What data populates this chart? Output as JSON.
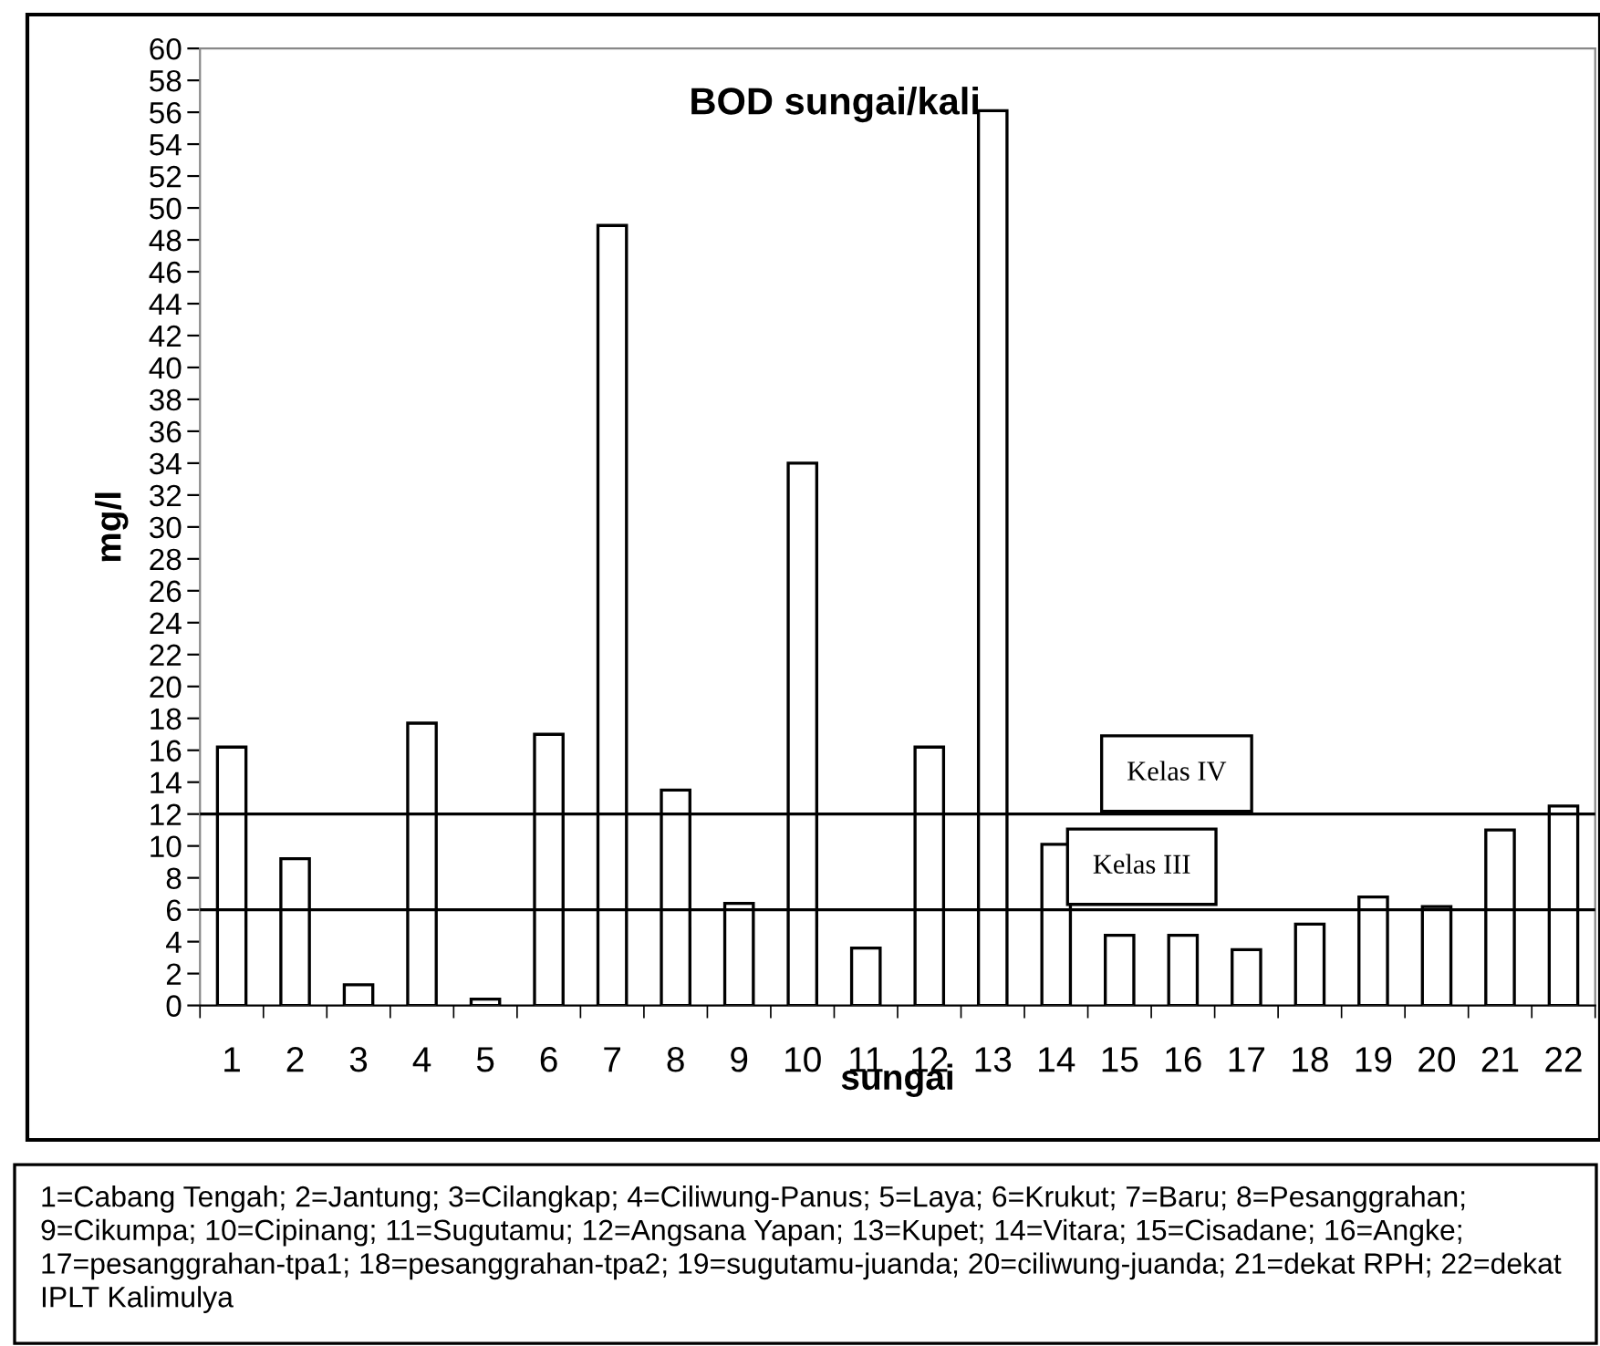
{
  "chart_data": {
    "type": "bar",
    "title": "BOD sungai/kali",
    "xlabel": "sungai",
    "ylabel": "mg/l",
    "categories": [
      "1",
      "2",
      "3",
      "4",
      "5",
      "6",
      "7",
      "8",
      "9",
      "10",
      "11",
      "12",
      "13",
      "14",
      "15",
      "16",
      "17",
      "18",
      "19",
      "20",
      "21",
      "22"
    ],
    "values": [
      16.2,
      9.2,
      1.3,
      17.7,
      0.4,
      17.0,
      48.9,
      13.5,
      6.4,
      34.0,
      3.6,
      16.2,
      56.1,
      10.1,
      4.4,
      4.4,
      3.5,
      5.1,
      6.8,
      6.2,
      11.0,
      12.5
    ],
    "color": "#ffffff",
    "ylim": [
      0,
      60
    ],
    "yticks": [
      0,
      2,
      4,
      6,
      8,
      10,
      12,
      14,
      16,
      18,
      20,
      22,
      24,
      26,
      28,
      30,
      32,
      34,
      36,
      38,
      40,
      42,
      44,
      46,
      48,
      50,
      52,
      54,
      56,
      58,
      60
    ],
    "ref_lines": [
      {
        "axis": "y",
        "value": 12,
        "label": "Kelas IV",
        "color": "#000000"
      },
      {
        "axis": "y",
        "value": 6,
        "label": "Kelas III",
        "color": "#000000"
      }
    ],
    "annotations": [
      "1=Cabang Tengah; 2=Jantung; 3=Cilangkap; 4=Ciliwung-Panus; 5=Laya; 6=Krukut; 7=Baru; 8=Pesanggrahan; 9=Cikumpa; 10=Cipinang; 11=Sugutamu; 12=Angsana Yapan; 13=Kupet; 14=Vitara; 15=Cisadane; 16=Angke; 17=pesanggrahan-tpa1; 18=pesanggrahan-tpa2; 19=sugutamu-juanda; 20=ciliwung-juanda; 21=dekat RPH; 22=dekat IPLT Kalimulya"
    ],
    "grid": false
  }
}
